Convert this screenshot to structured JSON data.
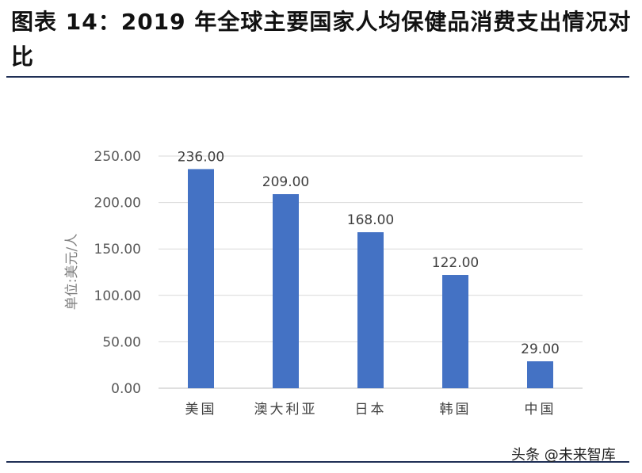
{
  "title": "图表 14：2019 年全球主要国家人均保健品消费支出情况对比",
  "watermark": "头条 @未来智库",
  "chart_data": {
    "type": "bar",
    "categories": [
      "美国",
      "澳大利亚",
      "日本",
      "韩国",
      "中国"
    ],
    "values": [
      236.0,
      209.0,
      168.0,
      122.0,
      29.0
    ],
    "value_labels": [
      "236.00",
      "209.00",
      "168.00",
      "122.00",
      "29.00"
    ],
    "ylabel": "单位:美元/人",
    "ylim": [
      0,
      250
    ],
    "yticks": [
      "0.00",
      "50.00",
      "100.00",
      "150.00",
      "200.00",
      "250.00"
    ],
    "grid": true,
    "bar_color": "#4472c4"
  }
}
